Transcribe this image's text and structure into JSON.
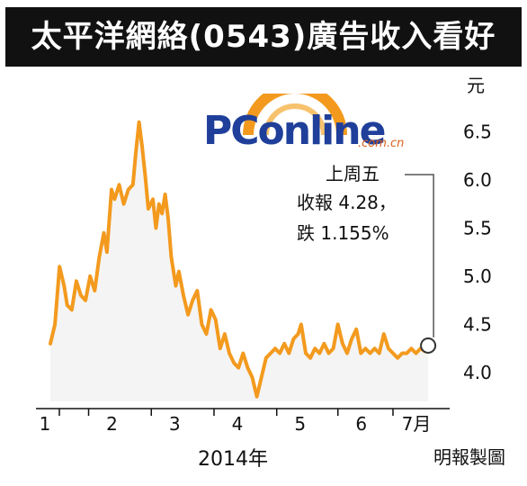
{
  "title": "太平洋網絡(0543)廣告收入看好",
  "credit": "明報製圖",
  "logo": {
    "text": "PConline",
    "sub": ".com.cn"
  },
  "annotation": {
    "line1": "上周五",
    "line2": "收報 4.28，",
    "line3": "跌 1.155%"
  },
  "colors": {
    "line": "#f39a1e",
    "area": "#f4f4f4",
    "title_bg": "#111111"
  },
  "chart_data": {
    "type": "line",
    "title": "太平洋網絡(0543)廣告收入看好",
    "xlabel": "2014年",
    "ylabel": "元",
    "ylim": [
      3.7,
      6.7
    ],
    "yticks": [
      "6.5",
      "6.0",
      "5.5",
      "5.0",
      "4.5",
      "4.0"
    ],
    "ytick_values": [
      6.5,
      6.0,
      5.5,
      5.0,
      4.5,
      4.0
    ],
    "xticks": [
      "1",
      "2",
      "3",
      "4",
      "5",
      "6",
      "7月"
    ],
    "xtick_positions": [
      0,
      1.25,
      3.3,
      5.35,
      7.4,
      9.4,
      11.2
    ],
    "x_range": [
      0,
      12.7
    ],
    "series": [
      {
        "values": [
          [
            0.0,
            4.3
          ],
          [
            0.15,
            4.5
          ],
          [
            0.3,
            5.1
          ],
          [
            0.45,
            4.9
          ],
          [
            0.55,
            4.7
          ],
          [
            0.7,
            4.65
          ],
          [
            0.85,
            4.95
          ],
          [
            1.0,
            4.8
          ],
          [
            1.15,
            4.75
          ],
          [
            1.3,
            5.0
          ],
          [
            1.45,
            4.85
          ],
          [
            1.6,
            5.2
          ],
          [
            1.75,
            5.45
          ],
          [
            1.85,
            5.25
          ],
          [
            2.0,
            5.9
          ],
          [
            2.1,
            5.8
          ],
          [
            2.25,
            5.95
          ],
          [
            2.4,
            5.75
          ],
          [
            2.55,
            5.9
          ],
          [
            2.7,
            5.95
          ],
          [
            2.8,
            6.3
          ],
          [
            2.9,
            6.6
          ],
          [
            3.0,
            6.35
          ],
          [
            3.1,
            6.05
          ],
          [
            3.2,
            5.7
          ],
          [
            3.35,
            5.8
          ],
          [
            3.45,
            5.5
          ],
          [
            3.55,
            5.75
          ],
          [
            3.65,
            5.65
          ],
          [
            3.75,
            5.85
          ],
          [
            3.85,
            5.6
          ],
          [
            3.95,
            5.2
          ],
          [
            4.1,
            4.9
          ],
          [
            4.2,
            5.05
          ],
          [
            4.35,
            4.8
          ],
          [
            4.5,
            4.6
          ],
          [
            4.65,
            4.75
          ],
          [
            4.8,
            4.85
          ],
          [
            4.95,
            4.5
          ],
          [
            5.1,
            4.4
          ],
          [
            5.25,
            4.65
          ],
          [
            5.4,
            4.55
          ],
          [
            5.55,
            4.25
          ],
          [
            5.7,
            4.4
          ],
          [
            5.85,
            4.2
          ],
          [
            6.0,
            4.1
          ],
          [
            6.15,
            4.05
          ],
          [
            6.3,
            4.2
          ],
          [
            6.45,
            4.05
          ],
          [
            6.6,
            3.95
          ],
          [
            6.75,
            3.75
          ],
          [
            6.9,
            3.95
          ],
          [
            7.05,
            4.15
          ],
          [
            7.2,
            4.2
          ],
          [
            7.35,
            4.25
          ],
          [
            7.5,
            4.2
          ],
          [
            7.65,
            4.3
          ],
          [
            7.8,
            4.2
          ],
          [
            7.95,
            4.35
          ],
          [
            8.1,
            4.4
          ],
          [
            8.2,
            4.5
          ],
          [
            8.35,
            4.2
          ],
          [
            8.5,
            4.15
          ],
          [
            8.65,
            4.25
          ],
          [
            8.8,
            4.2
          ],
          [
            8.95,
            4.3
          ],
          [
            9.1,
            4.2
          ],
          [
            9.25,
            4.25
          ],
          [
            9.4,
            4.5
          ],
          [
            9.55,
            4.3
          ],
          [
            9.7,
            4.2
          ],
          [
            9.85,
            4.35
          ],
          [
            10.0,
            4.45
          ],
          [
            10.15,
            4.2
          ],
          [
            10.3,
            4.25
          ],
          [
            10.45,
            4.2
          ],
          [
            10.6,
            4.25
          ],
          [
            10.75,
            4.2
          ],
          [
            10.9,
            4.4
          ],
          [
            11.05,
            4.25
          ],
          [
            11.2,
            4.2
          ],
          [
            11.35,
            4.15
          ],
          [
            11.5,
            4.2
          ],
          [
            11.65,
            4.2
          ],
          [
            11.8,
            4.25
          ],
          [
            11.95,
            4.2
          ],
          [
            12.1,
            4.25
          ],
          [
            12.25,
            4.22
          ],
          [
            12.35,
            4.28
          ]
        ]
      }
    ],
    "last_point": {
      "x": 12.35,
      "y": 4.28
    }
  }
}
